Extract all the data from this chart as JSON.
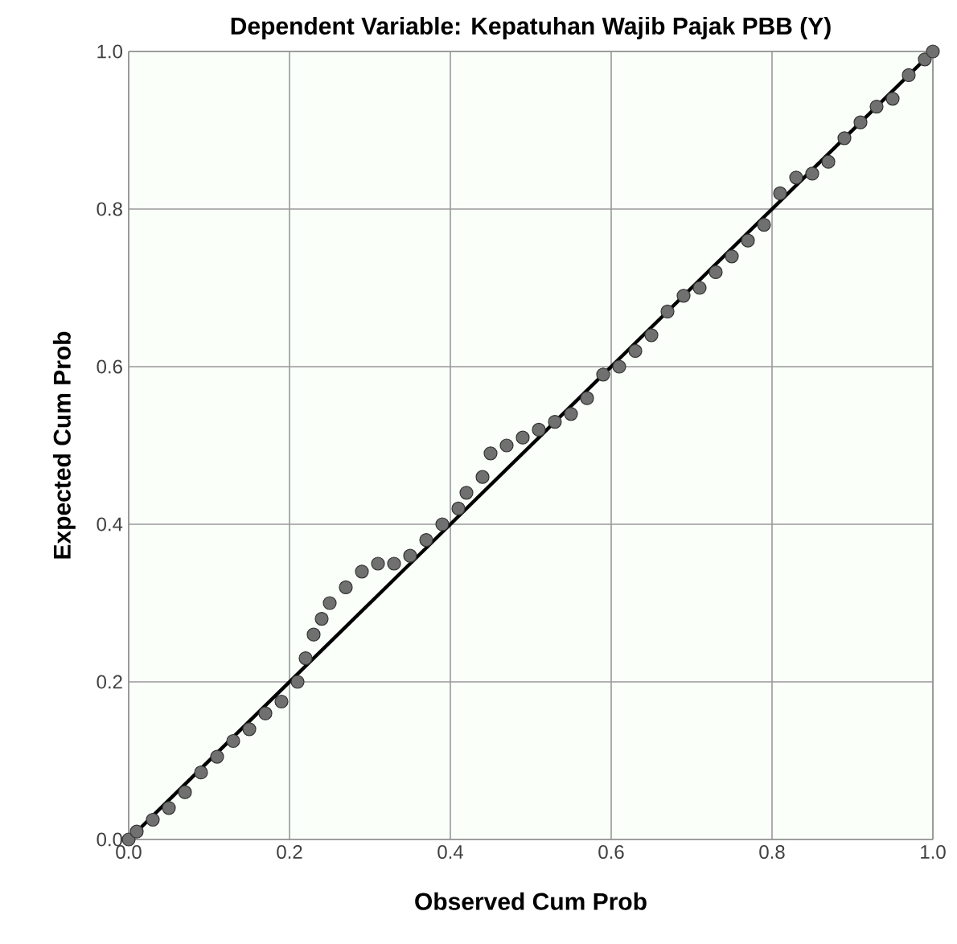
{
  "chart_data": {
    "type": "scatter",
    "title": "Dependent Variable: Kepatuhan Wajib Pajak PBB (Y)",
    "xlabel": "Observed Cum Prob",
    "ylabel": "Expected Cum Prob",
    "xlim": [
      0,
      1
    ],
    "ylim": [
      0,
      1
    ],
    "xticks": [
      {
        "value": 0,
        "label": "0.0"
      },
      0.2,
      0.4,
      0.6,
      0.8,
      {
        "value": 1,
        "label": "1.0"
      }
    ],
    "yticks": [
      {
        "value": 0,
        "label": "0.0"
      },
      0.2,
      0.4,
      0.6,
      0.8,
      {
        "value": 1,
        "label": "1.0"
      }
    ],
    "grid": true,
    "marker": "circle",
    "series": [
      {
        "color": "#707070",
        "x": [
          0,
          0.01,
          0.03,
          0.05,
          0.07,
          0.09,
          0.11,
          0.13,
          0.15,
          0.17,
          0.19,
          0.21,
          0.22,
          0.23,
          0.24,
          0.25,
          0.27,
          0.29,
          0.31,
          0.33,
          0.35,
          0.37,
          0.39,
          0.41,
          0.42,
          0.44,
          0.45,
          0.47,
          0.49,
          0.51,
          0.53,
          0.55,
          0.57,
          0.59,
          0.61,
          0.63,
          0.65,
          0.67,
          0.69,
          0.71,
          0.73,
          0.75,
          0.77,
          0.79,
          0.81,
          0.83,
          0.85,
          0.87,
          0.89,
          0.91,
          0.93,
          0.95,
          0.97,
          0.99,
          1.0
        ],
        "values": [
          0,
          0.01,
          0.025,
          0.04,
          0.06,
          0.085,
          0.105,
          0.125,
          0.14,
          0.16,
          0.175,
          0.2,
          0.23,
          0.26,
          0.28,
          0.3,
          0.32,
          0.34,
          0.35,
          0.35,
          0.36,
          0.38,
          0.4,
          0.42,
          0.44,
          0.46,
          0.49,
          0.5,
          0.51,
          0.52,
          0.53,
          0.54,
          0.56,
          0.59,
          0.6,
          0.62,
          0.64,
          0.67,
          0.69,
          0.7,
          0.72,
          0.74,
          0.76,
          0.78,
          0.82,
          0.84,
          0.845,
          0.86,
          0.89,
          0.91,
          0.93,
          0.94,
          0.97,
          0.99,
          1.0
        ]
      },
      {
        "type": "line",
        "color": "#000000",
        "marker": "none",
        "line_style": "solid",
        "x": [
          0,
          1
        ],
        "values": [
          0,
          1
        ]
      }
    ]
  }
}
